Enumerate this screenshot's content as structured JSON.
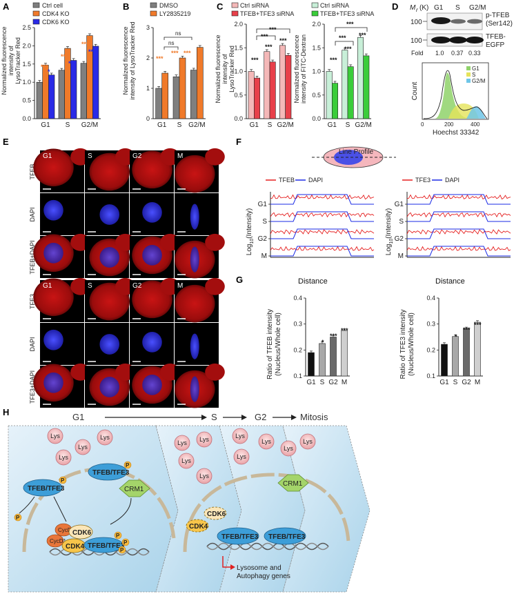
{
  "panels": {
    "A": {
      "label": "A",
      "ylabel": [
        "Normalized fluorescence",
        "intensity of",
        "LysoTracker Red"
      ],
      "legend": [
        "Ctrl cell",
        "CDK4 KO",
        "CDK6 KO"
      ],
      "yticks": [
        "0.0",
        "0.5",
        "1.0",
        "1.5",
        "2.0",
        "2.5"
      ],
      "stars": [
        "***",
        "*",
        "***",
        "**",
        "***",
        "***"
      ]
    },
    "B": {
      "label": "B",
      "ylabel": [
        "Normalized fluorescence",
        "intensity of LysoTracker Red"
      ],
      "legend": [
        "DMSO",
        "LY2835219"
      ],
      "yticks": [
        "0",
        "1",
        "2",
        "3"
      ],
      "stars": [
        "***",
        "***",
        "***"
      ],
      "ns": [
        "ns",
        "ns"
      ]
    },
    "C": {
      "label": "C",
      "ylabel_left": [
        "Normalized fluorescence",
        "intensity of",
        "LysoTracker Red"
      ],
      "ylabel_right": [
        "Normalized fluorescence",
        "intensity of FITC-Dextran"
      ],
      "legend_left": [
        "Ctrl siRNA",
        "TFEB+TFE3 siRNA"
      ],
      "legend_right": [
        "Ctrl siRNA",
        "TFEB+TFE3 siRNA"
      ],
      "yticks_left": [
        "0.0",
        "0.5",
        "1.0",
        "1.5",
        "2.0"
      ],
      "yticks_right": [
        "0.0",
        "0.5",
        "1.0",
        "1.5",
        "2.0"
      ],
      "stars": "***"
    },
    "D": {
      "label": "D",
      "mr": "M",
      "mr_sub": "r",
      "mr_unit": "(K)",
      "lanes": [
        "G1",
        "S",
        "G2/M"
      ],
      "bands": [
        "p-TFEB",
        "(Ser142)",
        "TFEB-",
        "EGFP"
      ],
      "marker": [
        "100",
        "100"
      ],
      "fold_label": "Fold",
      "fold_values": [
        "1.0",
        "0.37",
        "0.33"
      ],
      "hist_legend": [
        "G1",
        "S",
        "G2/M"
      ],
      "hist_ylabel": "Count",
      "hist_xlabel": "Hoechst 33342",
      "hist_xticks": [
        "0",
        "200",
        "400"
      ]
    },
    "E": {
      "label": "E",
      "phases": [
        "G1",
        "S",
        "G2",
        "M"
      ],
      "rows": [
        "TFEB",
        "DAPI",
        "TFEB+DAPI",
        "TFE3",
        "DAPI",
        "TFE3+DAPI"
      ]
    },
    "F": {
      "label": "F",
      "line_profile": "Line Profile",
      "legend_left": [
        "TFEB",
        "DAPI"
      ],
      "legend_right": [
        "TFE3",
        "DAPI"
      ],
      "ylabel_pre": "Log",
      "ylabel_sub": "10",
      "ylabel_post": "(Intensity)",
      "xlabel": "Distance",
      "tracks": [
        "G1",
        "S",
        "G2",
        "M"
      ]
    },
    "G": {
      "label": "G",
      "ylabel_left": [
        "Ratio of TFEB intensity",
        "(Nucleus/Whole cell)"
      ],
      "ylabel_right": [
        "Ratio of TFE3 intensity",
        "(Nucleus/Whole cell)"
      ],
      "yticks": [
        "0.1",
        "0.2",
        "0.3",
        "0.4"
      ],
      "stars": [
        "*",
        "***",
        "***"
      ]
    },
    "H": {
      "label": "H",
      "phases": [
        "G1",
        "S",
        "G2",
        "Mitosis"
      ],
      "lys": "Lys",
      "tfeb_tfe3": "TFEB/TFE3",
      "crm1": "CRM1",
      "cdk6": "CDK6",
      "cdk4": "CDK4",
      "cycd1": "CycD1",
      "p": "P",
      "genes": [
        "Lysosome and",
        "Autophagy genes"
      ]
    }
  },
  "chart_data": [
    {
      "type": "bar",
      "panel": "A",
      "categories": [
        "G1",
        "S",
        "G2/M"
      ],
      "series": [
        {
          "name": "Ctrl cell",
          "values": [
            1.0,
            1.33,
            1.52
          ]
        },
        {
          "name": "CDK4 KO",
          "values": [
            1.47,
            1.93,
            2.28
          ]
        },
        {
          "name": "CDK6 KO",
          "values": [
            1.2,
            1.6,
            1.99
          ]
        }
      ],
      "ylabel": "Normalized fluorescence intensity of LysoTracker Red",
      "ylim": [
        0,
        2.5
      ],
      "colors": [
        "#7f7f7f",
        "#f07a2a",
        "#2a2ae6"
      ]
    },
    {
      "type": "bar",
      "panel": "B",
      "categories": [
        "G1",
        "S",
        "G2/M"
      ],
      "series": [
        {
          "name": "DMSO",
          "values": [
            1.0,
            1.38,
            1.6
          ]
        },
        {
          "name": "LY2835219",
          "values": [
            1.5,
            2.0,
            2.35
          ]
        }
      ],
      "ylabel": "Normalized fluorescence intensity of LysoTracker Red",
      "ylim": [
        0,
        3
      ],
      "colors": [
        "#7f7f7f",
        "#f07a2a"
      ]
    },
    {
      "type": "bar",
      "panel": "C-left",
      "categories": [
        "G1",
        "S",
        "G2/M"
      ],
      "series": [
        {
          "name": "Ctrl siRNA",
          "values": [
            1.0,
            1.42,
            1.55
          ]
        },
        {
          "name": "TFEB+TFE3 siRNA",
          "values": [
            0.86,
            1.2,
            1.34
          ]
        }
      ],
      "ylabel": "Normalized fluorescence intensity of LysoTracker Red",
      "ylim": [
        0,
        2.0
      ],
      "colors": [
        "#f4b8b8",
        "#e8404a"
      ]
    },
    {
      "type": "bar",
      "panel": "C-right",
      "categories": [
        "G1",
        "S",
        "G2/M"
      ],
      "series": [
        {
          "name": "Ctrl siRNA",
          "values": [
            1.0,
            1.45,
            1.72
          ]
        },
        {
          "name": "TFEB+TFE3 siRNA",
          "values": [
            0.75,
            1.1,
            1.33
          ]
        }
      ],
      "ylabel": "Normalized fluorescence intensity of FITC-Dextran",
      "ylim": [
        0,
        2.0
      ],
      "colors": [
        "#c8efd8",
        "#3acd3a"
      ]
    },
    {
      "type": "bar",
      "panel": "G-left",
      "categories": [
        "G1",
        "S",
        "G2",
        "M"
      ],
      "series": [
        {
          "values": [
            0.19,
            0.225,
            0.25,
            0.275
          ]
        }
      ],
      "ylabel": "Ratio of TFEB intensity (Nucleus/Whole cell)",
      "ylim": [
        0.1,
        0.4
      ],
      "colors": [
        "#111111",
        "#a8a8a8",
        "#6a6a6a",
        "#cfcfcf"
      ]
    },
    {
      "type": "bar",
      "panel": "G-right",
      "categories": [
        "G1",
        "S",
        "G2",
        "M"
      ],
      "series": [
        {
          "values": [
            0.222,
            0.252,
            0.282,
            0.307
          ]
        }
      ],
      "ylabel": "Ratio of TFE3 intensity (Nucleus/Whole cell)",
      "ylim": [
        0.1,
        0.4
      ],
      "colors": [
        "#111111",
        "#a8a8a8",
        "#6a6a6a",
        "#cfcfcf"
      ]
    }
  ]
}
